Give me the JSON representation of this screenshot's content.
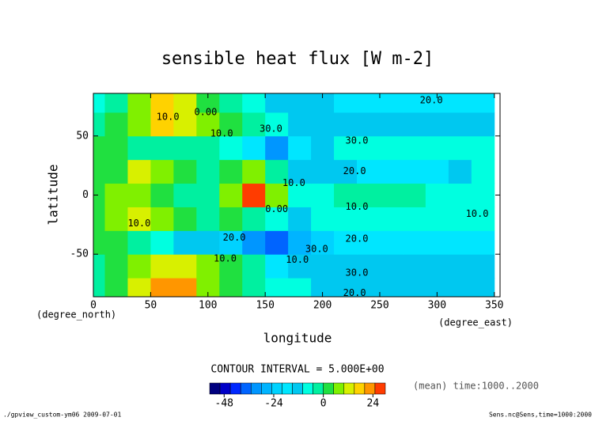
{
  "chart_data": {
    "type": "contour",
    "title": "sensible heat flux [W m-2]",
    "xlabel": "longitude",
    "ylabel": "latitude",
    "xunit": "(degree_east)",
    "yunit": "(degree_north)",
    "contour_interval": "CONTOUR INTERVAL = 5.000E+00",
    "mean_note": "(mean) time:1000..2000",
    "footer_left": "./gpview_custom-ym06  2009-07-01",
    "footer_right": "Sens.nc@Sens,time=1000:2000",
    "x": [
      0,
      20,
      40,
      60,
      80,
      100,
      120,
      140,
      160,
      180,
      200,
      220,
      240,
      260,
      280,
      300,
      320,
      340
    ],
    "y": [
      -80,
      -60,
      -40,
      -20,
      0,
      20,
      40,
      60,
      80
    ],
    "z": [
      [
        -5,
        0,
        10,
        20,
        20,
        5,
        0,
        -5,
        -10,
        -10,
        -15,
        -15,
        -15,
        -15,
        -15,
        -15,
        -15,
        -15
      ],
      [
        -5,
        0,
        5,
        10,
        10,
        5,
        0,
        -5,
        -20,
        -15,
        -15,
        -15,
        -15,
        -15,
        -15,
        -15,
        -15,
        -15
      ],
      [
        0,
        0,
        -5,
        -10,
        -15,
        -15,
        -25,
        -35,
        -40,
        -30,
        -25,
        -20,
        -20,
        -20,
        -20,
        -20,
        -20,
        -20
      ],
      [
        0,
        5,
        10,
        5,
        0,
        -5,
        0,
        -5,
        -10,
        -15,
        -10,
        -10,
        -10,
        -10,
        -10,
        -10,
        -10,
        -10
      ],
      [
        0,
        5,
        5,
        0,
        -5,
        -5,
        5,
        25,
        5,
        -10,
        -10,
        -5,
        -5,
        -5,
        -5,
        -10,
        -10,
        -10
      ],
      [
        0,
        0,
        10,
        5,
        0,
        -5,
        0,
        5,
        -5,
        -15,
        -15,
        -15,
        -20,
        -20,
        -20,
        -20,
        -15,
        -10
      ],
      [
        0,
        0,
        -5,
        -5,
        -5,
        -5,
        -10,
        -20,
        -35,
        -20,
        -15,
        -10,
        -10,
        -10,
        -10,
        -10,
        -10,
        -10
      ],
      [
        -5,
        0,
        5,
        15,
        10,
        5,
        0,
        -5,
        -10,
        -15,
        -15,
        -15,
        -15,
        -15,
        -15,
        -15,
        -15,
        -15
      ],
      [
        -10,
        -5,
        5,
        15,
        10,
        0,
        -5,
        -10,
        -15,
        -15,
        -15,
        -20,
        -20,
        -20,
        -20,
        -20,
        -20,
        -20
      ]
    ],
    "xlim": [
      0,
      355
    ],
    "ylim": [
      -86,
      86
    ],
    "xticks": [
      0,
      50,
      100,
      150,
      200,
      250,
      300,
      350
    ],
    "yticks": [
      -50,
      0,
      50
    ],
    "levels": [
      -55,
      -50,
      -45,
      -40,
      -35,
      -30,
      -25,
      -20,
      -15,
      -10,
      -5,
      0,
      5,
      10,
      15,
      20,
      25,
      30
    ],
    "colors": [
      "#00007f",
      "#0000c8",
      "#0028ff",
      "#0064ff",
      "#0096ff",
      "#00b4ff",
      "#00d2ff",
      "#00e6ff",
      "#00c8f0",
      "#00ffe0",
      "#00f0a0",
      "#20e040",
      "#80f000",
      "#d8f000",
      "#ffd200",
      "#ff9600",
      "#ff3c00"
    ],
    "cbticks": [
      -48,
      -24,
      0,
      24
    ],
    "annotations": [
      {
        "text": "20.0",
        "x": 295,
        "y": 80
      },
      {
        "text": "10.0",
        "x": 65,
        "y": 66
      },
      {
        "text": "0.00",
        "x": 98,
        "y": 70
      },
      {
        "text": "10.0",
        "x": 112,
        "y": 52
      },
      {
        "text": "30.0",
        "x": 155,
        "y": 56
      },
      {
        "text": "30.0",
        "x": 230,
        "y": 46
      },
      {
        "text": "20.0",
        "x": 228,
        "y": 20
      },
      {
        "text": "10.0",
        "x": 175,
        "y": 10
      },
      {
        "text": "0.00",
        "x": 160,
        "y": -12
      },
      {
        "text": "10.0",
        "x": 230,
        "y": -10
      },
      {
        "text": "10.0",
        "x": 335,
        "y": -16
      },
      {
        "text": "10.0",
        "x": 40,
        "y": -24
      },
      {
        "text": "20.0",
        "x": 123,
        "y": -36
      },
      {
        "text": "30.0",
        "x": 195,
        "y": -46
      },
      {
        "text": "10.0",
        "x": 178,
        "y": -55
      },
      {
        "text": "10.0",
        "x": 115,
        "y": -54
      },
      {
        "text": "20.0",
        "x": 230,
        "y": -37
      },
      {
        "text": "30.0",
        "x": 230,
        "y": -66
      },
      {
        "text": "20.0",
        "x": 228,
        "y": -83
      }
    ]
  }
}
